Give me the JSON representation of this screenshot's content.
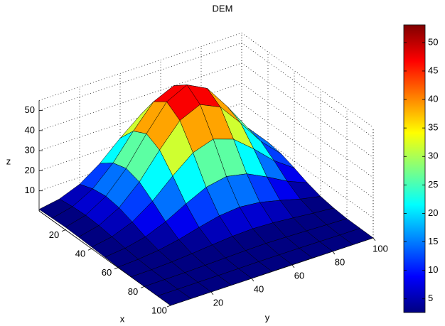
{
  "chart_data": {
    "type": "surface",
    "title": "DEM",
    "xlabel": "x",
    "ylabel": "y",
    "zlabel": "z",
    "x": [
      0,
      10,
      20,
      30,
      40,
      50,
      60,
      70,
      80,
      90,
      100
    ],
    "y": [
      0,
      10,
      20,
      30,
      40,
      50,
      60,
      70,
      80,
      90,
      100
    ],
    "z": [
      [
        0.8,
        2.6,
        6.6,
        13.6,
        22.8,
        31.0,
        34.4,
        31.0,
        22.8,
        13.6,
        6.6
      ],
      [
        1.1,
        3.5,
        9.0,
        18.5,
        31.0,
        42.3,
        46.9,
        42.3,
        31.0,
        18.5,
        9.0
      ],
      [
        1.3,
        3.9,
        10.0,
        20.5,
        34.4,
        46.9,
        52.0,
        46.9,
        34.4,
        20.5,
        10.0
      ],
      [
        1.1,
        3.5,
        9.0,
        18.5,
        31.0,
        42.3,
        46.9,
        42.3,
        31.0,
        18.5,
        9.0
      ],
      [
        0.8,
        2.6,
        6.6,
        13.6,
        22.8,
        31.0,
        34.4,
        31.0,
        22.8,
        13.6,
        6.6
      ],
      [
        0.5,
        1.6,
        3.9,
        8.1,
        13.6,
        18.5,
        20.5,
        18.5,
        13.6,
        8.1,
        3.9
      ],
      [
        0.2,
        0.8,
        1.9,
        3.9,
        6.6,
        9.0,
        10.0,
        9.0,
        6.6,
        3.9,
        1.9
      ],
      [
        0.1,
        0.3,
        0.8,
        1.6,
        2.6,
        3.5,
        3.9,
        3.5,
        2.6,
        1.6,
        0.8
      ],
      [
        0.0,
        0.1,
        0.2,
        0.5,
        0.8,
        1.1,
        1.3,
        1.1,
        0.8,
        0.5,
        0.2
      ],
      [
        0,
        0,
        0.1,
        0.1,
        0.2,
        0.3,
        0.3,
        0.3,
        0.2,
        0.1,
        0.1
      ],
      [
        0,
        0,
        0,
        0,
        0,
        0.1,
        0.1,
        0.1,
        0,
        0,
        0
      ]
    ],
    "xlim": [
      0,
      100
    ],
    "ylim": [
      0,
      100
    ],
    "zlim": [
      0,
      55
    ],
    "xticks": [
      20,
      40,
      60,
      80,
      100
    ],
    "yticks": [
      20,
      40,
      60,
      80,
      100
    ],
    "zticks": [
      10,
      20,
      30,
      40,
      50
    ],
    "colormap": "jet",
    "clim": [
      2.6,
      53.1
    ],
    "cticks": [
      5,
      10,
      15,
      20,
      25,
      30,
      35,
      40,
      45,
      50
    ],
    "colorbar": true,
    "grid": true
  }
}
